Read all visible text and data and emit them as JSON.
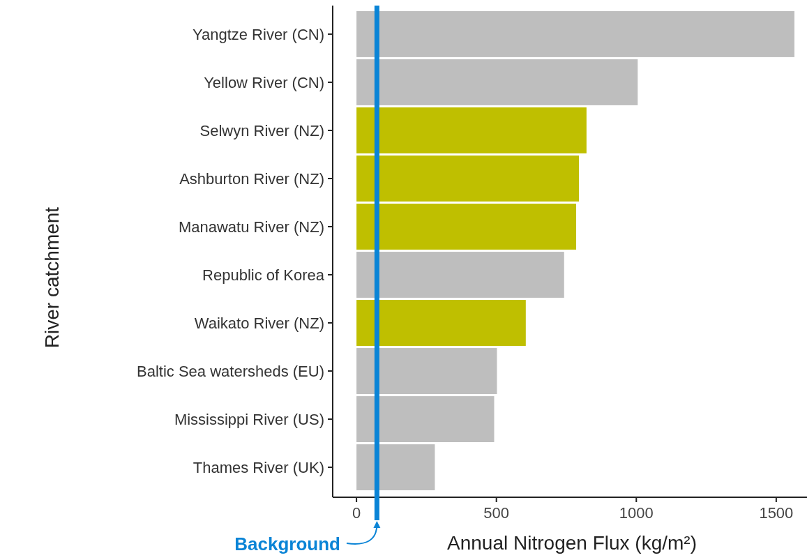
{
  "chart_data": {
    "type": "bar",
    "orientation": "horizontal",
    "xlabel": "Annual Nitrogen Flux (kg/m²)",
    "ylabel": "River catchment",
    "categories": [
      "Yangtze River (CN)",
      "Yellow River (CN)",
      "Selwyn River (NZ)",
      "Ashburton River (NZ)",
      "Manawatu River (NZ)",
      "Republic of Korea",
      "Waikato River (NZ)",
      "Baltic Sea watersheds (EU)",
      "Mississippi River (US)",
      "Thames River (UK)"
    ],
    "values": [
      1565,
      1005,
      822,
      795,
      785,
      742,
      605,
      502,
      492,
      280
    ],
    "colors": [
      "#bebebe",
      "#bebebe",
      "#bfbf00",
      "#bfbf00",
      "#bfbf00",
      "#bebebe",
      "#bfbf00",
      "#bebebe",
      "#bebebe",
      "#bebebe"
    ],
    "xlim": [
      -85,
      1610
    ],
    "xticks": [
      0,
      500,
      1000,
      1500
    ],
    "grid": false,
    "ref_lines": [
      {
        "axis": "x",
        "value": 73,
        "label": "Background",
        "color": "#0a84d6"
      }
    ]
  }
}
